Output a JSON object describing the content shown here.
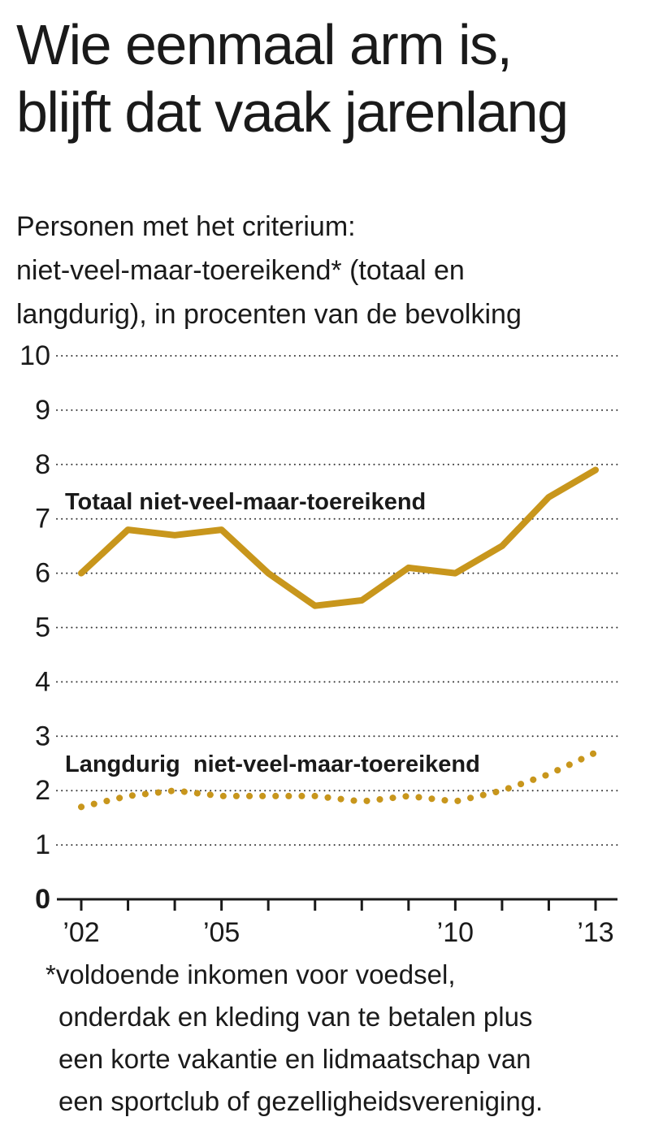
{
  "title_line1": "Wie eenmaal arm is,",
  "title_line2": "blijft dat vaak jarenlang",
  "subtitle_line1": "Personen met het criterium:",
  "subtitle_line2": "niet-veel-maar-toereikend* (totaal en",
  "subtitle_line3": "langdurig), in procenten van de bevolking",
  "footnote_lines": [
    "*voldoende inkomen voor voedsel,",
    "onderdak en kleding van te betalen plus",
    "een korte vakantie en lidmaatschap van",
    "een sportclub of gezelligheidsvereniging."
  ],
  "chart_data": {
    "type": "line",
    "title": "",
    "xlabel": "",
    "ylabel": "",
    "x": [
      2002,
      2003,
      2004,
      2005,
      2006,
      2007,
      2008,
      2009,
      2010,
      2011,
      2012,
      2013
    ],
    "xlim": [
      2002,
      2013
    ],
    "ylim": [
      0,
      10
    ],
    "yticks": [
      0,
      1,
      2,
      3,
      4,
      5,
      6,
      7,
      8,
      9,
      10
    ],
    "ytick_labels": [
      "0",
      "1",
      "2",
      "3",
      "4",
      "5",
      "6",
      "7",
      "8",
      "9",
      "10"
    ],
    "xtick_positions": [
      2002,
      2003,
      2004,
      2005,
      2006,
      2007,
      2008,
      2009,
      2010,
      2011,
      2012,
      2013
    ],
    "xtick_labels": [
      {
        "x": 2002,
        "label": "’02"
      },
      {
        "x": 2005,
        "label": "’05"
      },
      {
        "x": 2010,
        "label": "’10"
      },
      {
        "x": 2013,
        "label": "’13"
      }
    ],
    "grid": "horizontal dotted",
    "series": [
      {
        "name": "Totaal niet-veel-maar-toereikend",
        "style": "solid",
        "color": "#c8961c",
        "values": [
          6.0,
          6.8,
          6.7,
          6.8,
          6.0,
          5.4,
          5.5,
          6.1,
          6.0,
          6.5,
          7.4,
          7.9
        ]
      },
      {
        "name": "Langdurig  niet-veel-maar-toereikend",
        "style": "dotted",
        "color": "#c8961c",
        "values": [
          1.7,
          1.9,
          2.0,
          1.9,
          1.9,
          1.9,
          1.8,
          1.9,
          1.8,
          2.0,
          2.3,
          2.7
        ]
      }
    ]
  }
}
